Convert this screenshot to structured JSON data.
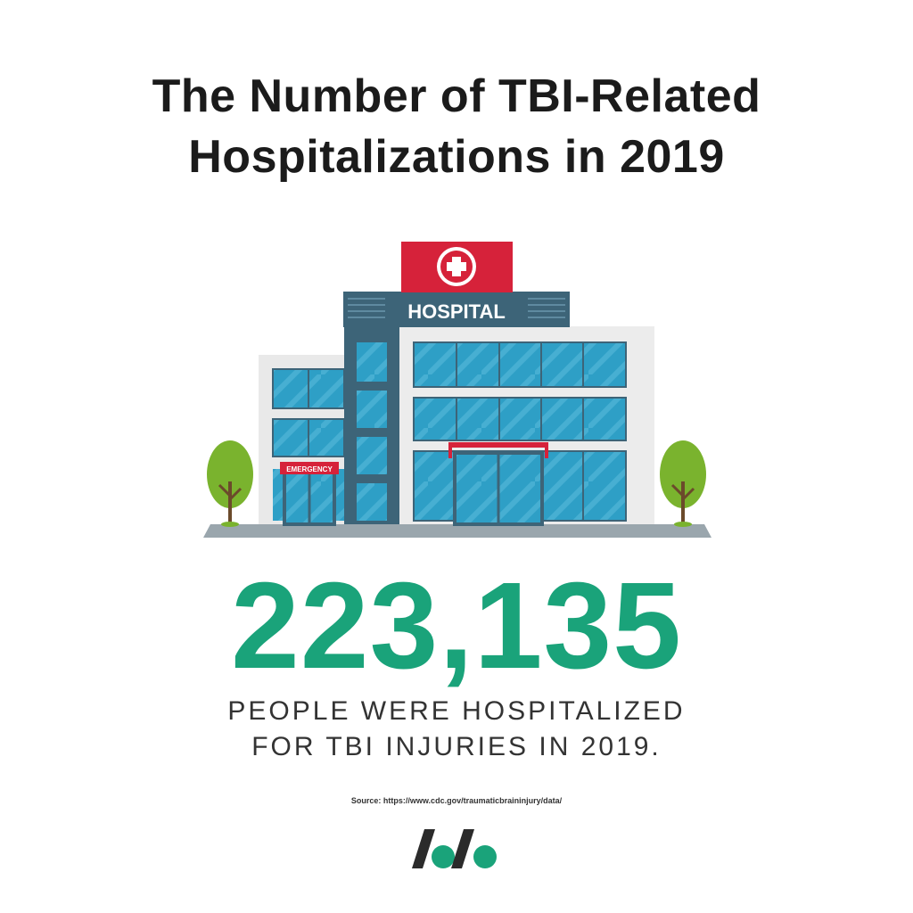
{
  "title": {
    "line1": "The Number of TBI-Related",
    "line2": "Hospitalizations in 2019"
  },
  "illustration": {
    "sign_text": "HOSPITAL",
    "emergency_text": "EMERGENCY"
  },
  "stat": {
    "value": "223,135",
    "caption_line1": "PEOPLE WERE HOSPITALIZED",
    "caption_line2": "FOR TBI INJURIES IN 2019."
  },
  "source": "Source: https://www.cdc.gov/traumaticbraininjury/data/",
  "colors": {
    "accent_green": "#1aa37a",
    "building_teal": "#2e9fc6",
    "building_dark": "#3d6478",
    "sign_red": "#d6223a",
    "tree_green": "#7ab32e",
    "ground_gray": "#9aa6ad"
  }
}
